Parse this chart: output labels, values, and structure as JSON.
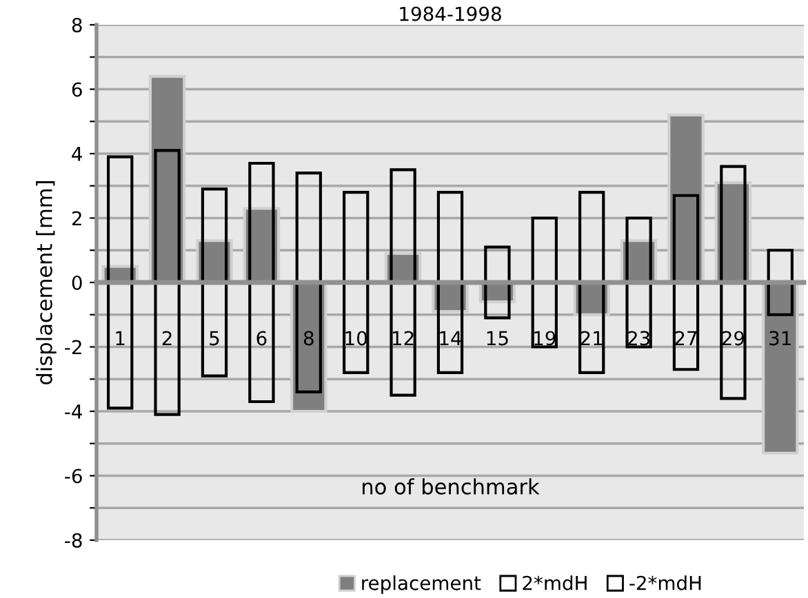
{
  "chart_data": {
    "type": "bar",
    "title": "1984-1998",
    "xlabel": "no of benchmark",
    "ylabel": "displacement [mm]",
    "categories": [
      "1",
      "2",
      "5",
      "6",
      "8",
      "10",
      "12",
      "14",
      "15",
      "19",
      "21",
      "23",
      "27",
      "29",
      "31"
    ],
    "series": [
      {
        "name": "replacement",
        "color": "#7f7f7f",
        "values": [
          0.5,
          6.4,
          1.3,
          2.3,
          -4.0,
          null,
          0.9,
          -0.9,
          -0.6,
          null,
          -1.0,
          1.3,
          5.2,
          3.1,
          -5.3
        ]
      },
      {
        "name": "2*mdH",
        "color": "#000000",
        "values": [
          3.9,
          4.1,
          2.9,
          3.7,
          3.4,
          2.8,
          3.5,
          2.8,
          1.1,
          2.0,
          2.8,
          2.0,
          2.7,
          3.6,
          1.0
        ]
      },
      {
        "name": "-2*mdH",
        "color": "#000000",
        "values": [
          -3.9,
          -4.1,
          -2.9,
          -3.7,
          -3.4,
          -2.8,
          -3.5,
          -2.8,
          -1.1,
          -2.0,
          -2.8,
          -2.0,
          -2.7,
          -3.6,
          -1.0
        ]
      }
    ],
    "ylim": [
      -8,
      8
    ],
    "yticks": [
      -8,
      {
        "value": -7,
        "label": null
      },
      -6,
      {
        "value": -5,
        "label": null
      },
      -4,
      {
        "value": -3,
        "label": null
      },
      -2,
      {
        "value": -1,
        "label": null
      },
      0,
      {
        "value": 1,
        "label": null
      },
      2,
      {
        "value": 3,
        "label": null
      },
      4,
      {
        "value": 5,
        "label": null
      },
      6,
      {
        "value": 7,
        "label": null
      },
      8
    ],
    "grid": "y",
    "legend": "bottom"
  }
}
